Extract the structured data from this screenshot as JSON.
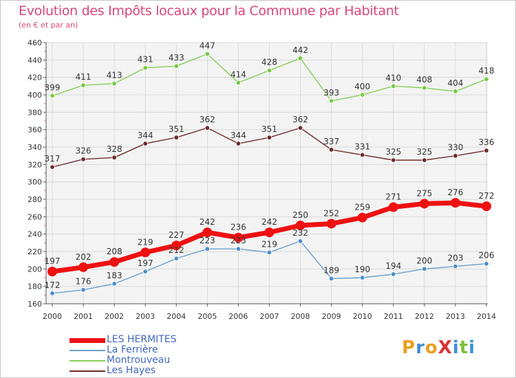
{
  "title": "Evolution des Impôts locaux pour la Commune par Habitant",
  "subtitle": "(en € et par an)",
  "logo": {
    "text": "ProXiti",
    "letters": [
      {
        "ch": "P",
        "color": "#e8a020"
      },
      {
        "ch": "r",
        "color": "#3d8fd6"
      },
      {
        "ch": "o",
        "color": "#e8a020"
      },
      {
        "ch": "X",
        "color": "#d93333"
      },
      {
        "ch": "i",
        "color": "#3d8fd6"
      },
      {
        "ch": "t",
        "color": "#7bbf3a"
      },
      {
        "ch": "i",
        "color": "#3d8fd6"
      }
    ]
  },
  "chart_data": {
    "type": "line",
    "x": [
      "2000",
      "2001",
      "2002",
      "2003",
      "2004",
      "2005",
      "2006",
      "2007",
      "2008",
      "2009",
      "2010",
      "2011",
      "2012",
      "2013",
      "2014"
    ],
    "ylim": [
      160,
      460
    ],
    "yticks": [
      160,
      180,
      200,
      220,
      240,
      260,
      280,
      300,
      320,
      340,
      360,
      380,
      400,
      420,
      440,
      460
    ],
    "grid": true,
    "legend_position": "bottom-left",
    "series": [
      {
        "name": "Montrouveau",
        "color": "#88cc55",
        "marker": "#77cc44",
        "width": 1.4,
        "values": [
          399,
          411,
          413,
          431,
          433,
          447,
          414,
          428,
          442,
          393,
          400,
          410,
          408,
          404,
          418
        ]
      },
      {
        "name": "Les Hayes",
        "color": "#6e2a2a",
        "marker": "#6e2a2a",
        "width": 1.4,
        "values": [
          317,
          326,
          328,
          344,
          351,
          362,
          344,
          351,
          362,
          337,
          331,
          325,
          325,
          330,
          336
        ]
      },
      {
        "name": "La Ferrière",
        "color": "#6a9fcc",
        "marker": "#4a8fcc",
        "width": 1.4,
        "values": [
          172,
          176,
          183,
          197,
          212,
          223,
          223,
          219,
          232,
          189,
          190,
          194,
          200,
          203,
          206
        ]
      },
      {
        "name": "LES HERMITES",
        "color": "#ee1111",
        "marker": "#ee1111",
        "width": 7,
        "values": [
          197,
          202,
          208,
          219,
          227,
          242,
          236,
          242,
          250,
          252,
          259,
          271,
          275,
          276,
          272
        ]
      }
    ],
    "legend_order": [
      "LES HERMITES",
      "La Ferrière",
      "Montrouveau",
      "Les Hayes"
    ]
  }
}
